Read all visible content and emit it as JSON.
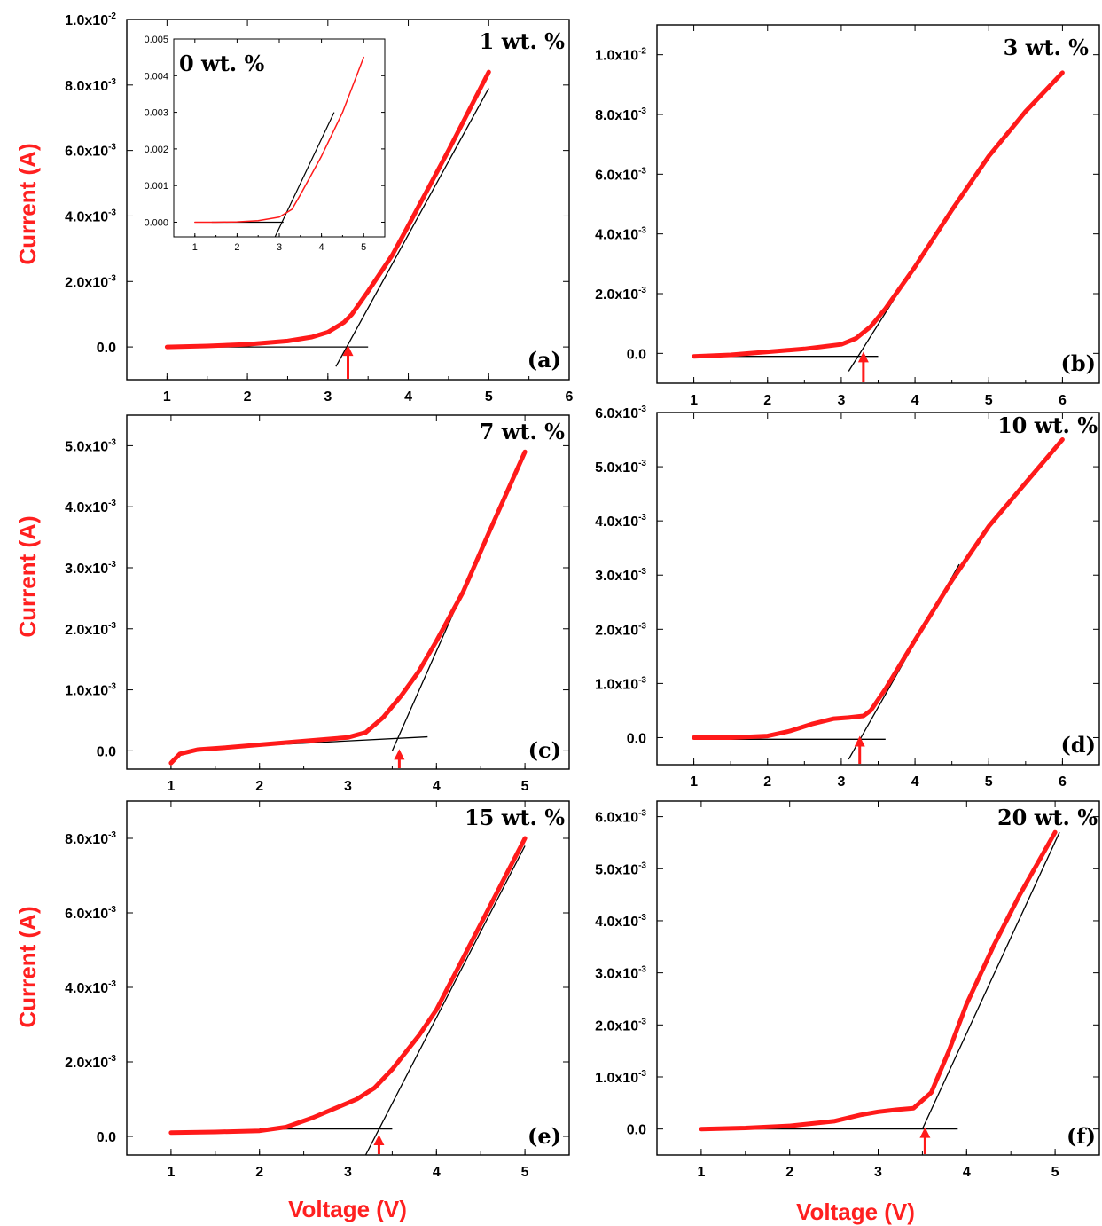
{
  "figure": {
    "ylabel": "Current (A)",
    "xlabel": "Voltage (V)"
  },
  "chart_data": [
    {
      "panel": "(a)",
      "title": "1 wt. %",
      "type": "line",
      "xlim": [
        0.5,
        6
      ],
      "ylim": [
        -0.001,
        0.01
      ],
      "xticks": [
        "1",
        "2",
        "3",
        "4",
        "5",
        "6"
      ],
      "yticks": [
        [
          "0.0",
          ""
        ],
        [
          "2.0x10",
          "-3"
        ],
        [
          "4.0x10",
          "-3"
        ],
        [
          "6.0x10",
          "-3"
        ],
        [
          "8.0x10",
          "-3"
        ],
        [
          "1.0x10",
          "-2"
        ]
      ],
      "ytick_values": [
        0,
        0.002,
        0.004,
        0.006,
        0.008,
        0.01
      ],
      "series": [
        {
          "x": [
            1.0,
            1.5,
            2.0,
            2.5,
            2.8,
            3.0,
            3.2,
            3.3,
            3.5,
            3.8,
            4.0,
            4.5,
            5.0
          ],
          "y": [
            0.0,
            3e-05,
            8e-05,
            0.00018,
            0.0003,
            0.00045,
            0.00075,
            0.001,
            0.0017,
            0.0028,
            0.0037,
            0.006,
            0.0084
          ]
        }
      ],
      "fit_lines": [
        {
          "x": [
            3.1,
            5.0
          ],
          "y": [
            -0.0006,
            0.0079
          ]
        },
        {
          "x": [
            1.0,
            3.5
          ],
          "y": [
            0.0,
            0.0
          ]
        }
      ],
      "threshold_voltage": 3.25,
      "inset": {
        "title": "0 wt. %",
        "xlim": [
          0.5,
          5.5
        ],
        "ylim": [
          -0.0004,
          0.005
        ],
        "xticks": [
          "1",
          "2",
          "3",
          "4",
          "5"
        ],
        "yticks": [
          "0.000",
          "0.001",
          "0.002",
          "0.003",
          "0.004",
          "0.005"
        ],
        "ytick_values": [
          0,
          0.001,
          0.002,
          0.003,
          0.004,
          0.005
        ],
        "series": [
          {
            "x": [
              1.0,
              1.5,
              2.0,
              2.5,
              3.0,
              3.3,
              3.5,
              4.0,
              4.5,
              5.0
            ],
            "y": [
              0.0,
              0.0,
              1e-05,
              4e-05,
              0.00014,
              0.00035,
              0.00075,
              0.0018,
              0.003,
              0.0045
            ]
          }
        ],
        "fit_lines": [
          {
            "x": [
              2.9,
              4.3
            ],
            "y": [
              -0.0004,
              0.003
            ]
          },
          {
            "x": [
              1.4,
              3.1
            ],
            "y": [
              0.0,
              0.0
            ]
          }
        ]
      }
    },
    {
      "panel": "(b)",
      "title": "3 wt. %",
      "type": "line",
      "xlim": [
        0.5,
        6.5
      ],
      "ylim": [
        -0.001,
        0.011
      ],
      "xticks": [
        "1",
        "2",
        "3",
        "4",
        "5",
        "6"
      ],
      "yticks": [
        [
          "0.0",
          ""
        ],
        [
          "2.0x10",
          "-3"
        ],
        [
          "4.0x10",
          "-3"
        ],
        [
          "6.0x10",
          "-3"
        ],
        [
          "8.0x10",
          "-3"
        ],
        [
          "1.0x10",
          "-2"
        ]
      ],
      "ytick_values": [
        0,
        0.002,
        0.004,
        0.006,
        0.008,
        0.01
      ],
      "series": [
        {
          "x": [
            1.0,
            1.5,
            2.0,
            2.5,
            3.0,
            3.2,
            3.4,
            3.6,
            4.0,
            4.5,
            5.0,
            5.5,
            6.0
          ],
          "y": [
            -0.0001,
            -5e-05,
            5e-05,
            0.00015,
            0.0003,
            0.0005,
            0.0009,
            0.0015,
            0.0029,
            0.0048,
            0.0066,
            0.0081,
            0.0094
          ]
        }
      ],
      "fit_lines": [
        {
          "x": [
            3.1,
            4.4
          ],
          "y": [
            -0.0006,
            0.0045
          ]
        },
        {
          "x": [
            1.0,
            3.5
          ],
          "y": [
            -0.0001,
            -0.0001
          ]
        }
      ],
      "threshold_voltage": 3.3
    },
    {
      "panel": "(c)",
      "title": "7 wt. %",
      "type": "line",
      "xlim": [
        0.5,
        5.5
      ],
      "ylim": [
        -0.0003,
        0.0055
      ],
      "xticks": [
        "1",
        "2",
        "3",
        "4",
        "5"
      ],
      "yticks": [
        [
          "0.0",
          ""
        ],
        [
          "1.0x10",
          "-3"
        ],
        [
          "2.0x10",
          "-3"
        ],
        [
          "3.0x10",
          "-3"
        ],
        [
          "4.0x10",
          "-3"
        ],
        [
          "5.0x10",
          "-3"
        ]
      ],
      "ytick_values": [
        0,
        0.001,
        0.002,
        0.003,
        0.004,
        0.005
      ],
      "series": [
        {
          "x": [
            1.0,
            1.1,
            1.3,
            1.6,
            2.0,
            2.5,
            3.0,
            3.2,
            3.4,
            3.6,
            3.8,
            4.0,
            4.3,
            4.6,
            5.0
          ],
          "y": [
            -0.0002,
            -5e-05,
            2e-05,
            5e-05,
            0.0001,
            0.00016,
            0.00022,
            0.0003,
            0.00055,
            0.0009,
            0.0013,
            0.0018,
            0.0026,
            0.0036,
            0.0049
          ]
        }
      ],
      "fit_lines": [
        {
          "x": [
            3.5,
            5.0
          ],
          "y": [
            0.0,
            0.0049
          ]
        },
        {
          "x": [
            1.5,
            3.9
          ],
          "y": [
            5e-05,
            0.00023
          ]
        }
      ],
      "threshold_voltage": 3.58
    },
    {
      "panel": "(d)",
      "title": "10 wt. %",
      "type": "line",
      "xlim": [
        0.5,
        6.5
      ],
      "ylim": [
        -0.0005,
        0.006
      ],
      "xticks": [
        "1",
        "2",
        "3",
        "4",
        "5",
        "6"
      ],
      "yticks": [
        [
          "0.0",
          ""
        ],
        [
          "1.0x10",
          "-3"
        ],
        [
          "2.0x10",
          "-3"
        ],
        [
          "3.0x10",
          "-3"
        ],
        [
          "4.0x10",
          "-3"
        ],
        [
          "5.0x10",
          "-3"
        ],
        [
          "6.0x10",
          "-3"
        ]
      ],
      "ytick_values": [
        0,
        0.001,
        0.002,
        0.003,
        0.004,
        0.005,
        0.006
      ],
      "series": [
        {
          "x": [
            1.0,
            1.5,
            2.0,
            2.3,
            2.6,
            2.9,
            3.1,
            3.3,
            3.4,
            3.6,
            4.0,
            4.5,
            5.0,
            5.5,
            6.0
          ],
          "y": [
            0.0,
            0.0,
            3e-05,
            0.00012,
            0.00025,
            0.00035,
            0.00037,
            0.0004,
            0.0005,
            0.0009,
            0.0018,
            0.0029,
            0.0039,
            0.0047,
            0.0055
          ]
        }
      ],
      "fit_lines": [
        {
          "x": [
            3.1,
            4.6
          ],
          "y": [
            -0.0004,
            0.0032
          ]
        },
        {
          "x": [
            1.0,
            3.6
          ],
          "y": [
            -3e-05,
            -3e-05
          ]
        }
      ],
      "threshold_voltage": 3.25
    },
    {
      "panel": "(e)",
      "title": "15 wt. %",
      "type": "line",
      "xlim": [
        0.5,
        5.5
      ],
      "ylim": [
        -0.0005,
        0.009
      ],
      "xticks": [
        "1",
        "2",
        "3",
        "4",
        "5"
      ],
      "yticks": [
        [
          "0.0",
          ""
        ],
        [
          "2.0x10",
          "-3"
        ],
        [
          "4.0x10",
          "-3"
        ],
        [
          "6.0x10",
          "-3"
        ],
        [
          "8.0x10",
          "-3"
        ]
      ],
      "ytick_values": [
        0,
        0.002,
        0.004,
        0.006,
        0.008
      ],
      "series": [
        {
          "x": [
            1.0,
            1.5,
            2.0,
            2.3,
            2.6,
            2.9,
            3.1,
            3.3,
            3.5,
            3.8,
            4.0,
            4.5,
            5.0
          ],
          "y": [
            0.0001,
            0.00012,
            0.00015,
            0.00025,
            0.0005,
            0.0008,
            0.001,
            0.0013,
            0.0018,
            0.0027,
            0.0034,
            0.0057,
            0.008
          ]
        }
      ],
      "fit_lines": [
        {
          "x": [
            3.2,
            5.0
          ],
          "y": [
            -0.0005,
            0.0078
          ]
        },
        {
          "x": [
            2.0,
            3.5
          ],
          "y": [
            0.0002,
            0.0002
          ]
        }
      ],
      "threshold_voltage": 3.35
    },
    {
      "panel": "(f)",
      "title": "20 wt. %",
      "type": "line",
      "xlim": [
        0.5,
        5.5
      ],
      "ylim": [
        -0.0005,
        0.0063
      ],
      "xticks": [
        "1",
        "2",
        "3",
        "4",
        "5"
      ],
      "yticks": [
        [
          "0.0",
          ""
        ],
        [
          "1.0x10",
          "-3"
        ],
        [
          "2.0x10",
          "-3"
        ],
        [
          "3.0x10",
          "-3"
        ],
        [
          "4.0x10",
          "-3"
        ],
        [
          "5.0x10",
          "-3"
        ],
        [
          "6.0x10",
          "-3"
        ]
      ],
      "ytick_values": [
        0,
        0.001,
        0.002,
        0.003,
        0.004,
        0.005,
        0.006
      ],
      "series": [
        {
          "x": [
            1.0,
            1.5,
            2.0,
            2.5,
            2.8,
            3.0,
            3.2,
            3.4,
            3.6,
            3.8,
            4.0,
            4.3,
            4.6,
            5.0
          ],
          "y": [
            0.0,
            2e-05,
            6e-05,
            0.00015,
            0.00027,
            0.00033,
            0.00037,
            0.0004,
            0.0007,
            0.0015,
            0.0024,
            0.0035,
            0.0045,
            0.0057
          ]
        }
      ],
      "fit_lines": [
        {
          "x": [
            3.5,
            5.05
          ],
          "y": [
            0.0,
            0.0057
          ]
        },
        {
          "x": [
            1.0,
            3.9
          ],
          "y": [
            0.0,
            0.0
          ]
        }
      ],
      "threshold_voltage": 3.53
    }
  ]
}
